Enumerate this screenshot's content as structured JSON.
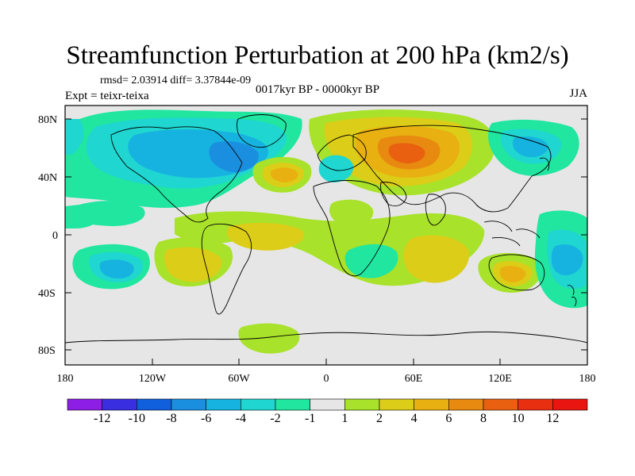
{
  "title": "Streamfunction Perturbation at 200 hPa (km2/s)",
  "stats": "rmsd= 2.03914 diff= 3.37844e-09",
  "experiment": "Expt = teixr-teixa",
  "period": "0017kyr BP - 0000kyr BP",
  "season": "JJA",
  "lat_labels": [
    "80N",
    "40N",
    "0",
    "40S",
    "80S"
  ],
  "lon_labels": [
    "180",
    "120W",
    "60W",
    "0",
    "60E",
    "120E",
    "180"
  ],
  "colorbar": {
    "labels": [
      "-12",
      "-10",
      "-8",
      "-6",
      "-4",
      "-2",
      "-1",
      "1",
      "2",
      "4",
      "6",
      "8",
      "10",
      "12"
    ],
    "colors": [
      "#8c1ee6",
      "#3a2fe0",
      "#1060dd",
      "#1a8fe0",
      "#17b3e0",
      "#1fd6d0",
      "#20e6a0",
      "#e6e6e6",
      "#a8e22a",
      "#dccd18",
      "#e8b010",
      "#e88a10",
      "#e86010",
      "#e83010",
      "#e81510"
    ]
  },
  "palette": {
    "neutral": "#e6e6e6",
    "neg1": "#20e6a0",
    "neg2": "#1fd6d0",
    "neg4": "#17b3e0",
    "neg6": "#1a8fe0",
    "neg8": "#1060dd",
    "pos1": "#a8e22a",
    "pos2": "#dccd18",
    "pos4": "#e8b010",
    "pos6": "#e88a10",
    "pos8": "#e86010"
  }
}
